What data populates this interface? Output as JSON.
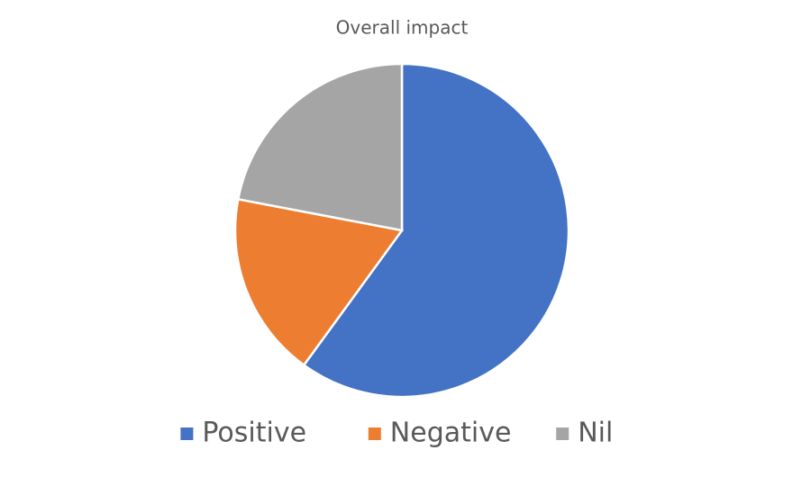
{
  "chart_data": {
    "type": "pie",
    "title": "Overall impact",
    "categories": [
      "Positive",
      "Negative",
      "Nil"
    ],
    "values": [
      60,
      18,
      22
    ],
    "colors": [
      "#4472c4",
      "#ed7d31",
      "#a5a5a5"
    ],
    "legend": "bottom"
  }
}
